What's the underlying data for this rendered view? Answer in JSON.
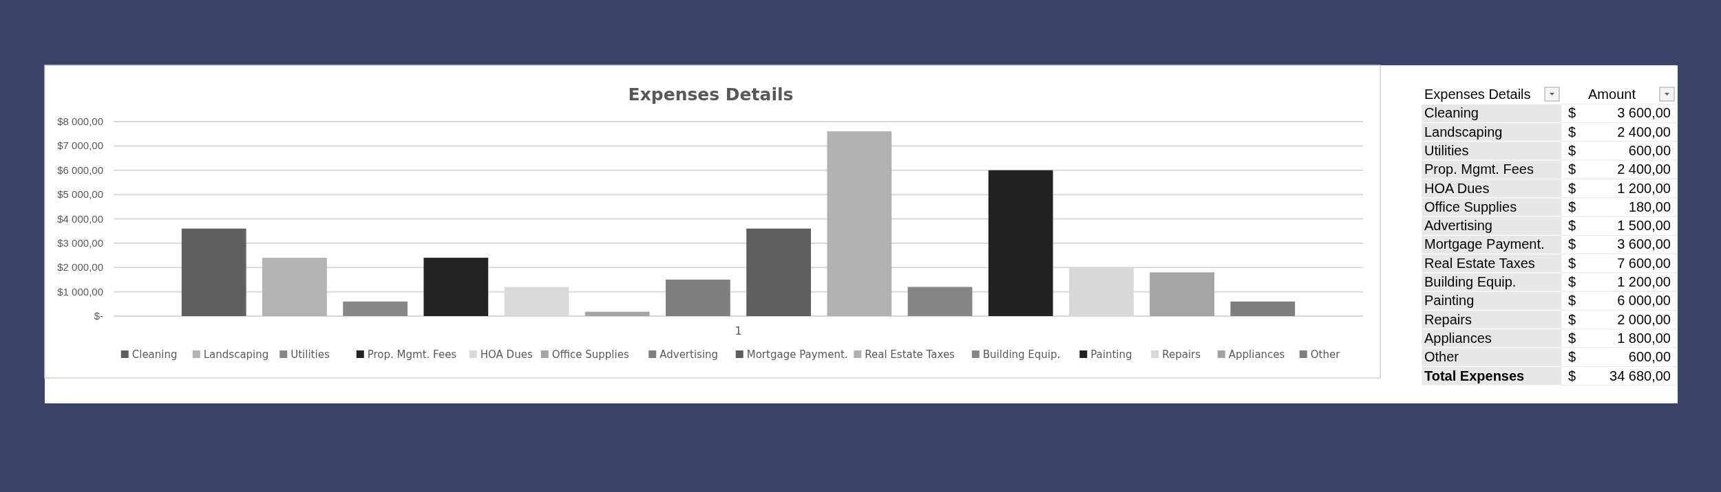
{
  "chart_data": {
    "type": "bar",
    "title": "Expenses Details",
    "categories": [
      "1"
    ],
    "ylim": [
      0,
      8000
    ],
    "yticks": [
      {
        "value": 0,
        "label": "$-"
      },
      {
        "value": 1000,
        "label": "$1 000,00"
      },
      {
        "value": 2000,
        "label": "$2 000,00"
      },
      {
        "value": 3000,
        "label": "$3 000,00"
      },
      {
        "value": 4000,
        "label": "$4 000,00"
      },
      {
        "value": 5000,
        "label": "$5 000,00"
      },
      {
        "value": 6000,
        "label": "$6 000,00"
      },
      {
        "value": 7000,
        "label": "$7 000,00"
      },
      {
        "value": 8000,
        "label": "$8 000,00"
      }
    ],
    "grid": "y",
    "legend": "bottom",
    "series": [
      {
        "name": "Cleaning",
        "color": "#5f5f5f",
        "values": [
          3600
        ],
        "value_labels": [
          "$ 3 600,00"
        ]
      },
      {
        "name": "Landscaping",
        "color": "#b2b2b2",
        "values": [
          2400
        ],
        "value_labels": [
          "$ 2 400,00"
        ]
      },
      {
        "name": "Utilities",
        "color": "#878787",
        "values": [
          600
        ],
        "value_labels": [
          "$ 600,00"
        ]
      },
      {
        "name": "Prop. Mgmt. Fees",
        "color": "#232323",
        "values": [
          2400
        ],
        "value_labels": [
          "$ 2 400,00"
        ]
      },
      {
        "name": "HOA Dues",
        "color": "#d9d9d9",
        "values": [
          1200
        ],
        "value_labels": [
          "$ 1 200,00"
        ]
      },
      {
        "name": "Office Supplies",
        "color": "#a5a5a5",
        "values": [
          180
        ],
        "value_labels": [
          "$ 180,00"
        ]
      },
      {
        "name": "Advertising",
        "color": "#7f7f7f",
        "values": [
          1500
        ],
        "value_labels": [
          "$ 1 500,00"
        ]
      },
      {
        "name": "Mortgage Payment.",
        "color": "#5e5e5e",
        "values": [
          3600
        ],
        "value_labels": [
          "$ 3 600,00"
        ]
      },
      {
        "name": "Real Estate Taxes",
        "color": "#b1b1b1",
        "values": [
          7600
        ],
        "value_labels": [
          "$ 7 600,00"
        ]
      },
      {
        "name": "Building Equip.",
        "color": "#868686",
        "values": [
          1200
        ],
        "value_labels": [
          "$ 1 200,00"
        ]
      },
      {
        "name": "Painting",
        "color": "#222222",
        "values": [
          6000
        ],
        "value_labels": [
          "$ 6 000,00"
        ]
      },
      {
        "name": "Repairs",
        "color": "#d8d8d8",
        "values": [
          2000
        ],
        "value_labels": [
          "$ 2 000,00"
        ]
      },
      {
        "name": "Appliances",
        "color": "#a4a4a4",
        "values": [
          1800
        ],
        "value_labels": [
          "$ 1 800,00"
        ]
      },
      {
        "name": "Other",
        "color": "#7e7e7e",
        "values": [
          600
        ],
        "value_labels": [
          "$ 600,00"
        ]
      }
    ],
    "annotations": [
      "Expenses Details",
      "Amount",
      "Total Expenses",
      "$ 34 680,00"
    ]
  }
}
